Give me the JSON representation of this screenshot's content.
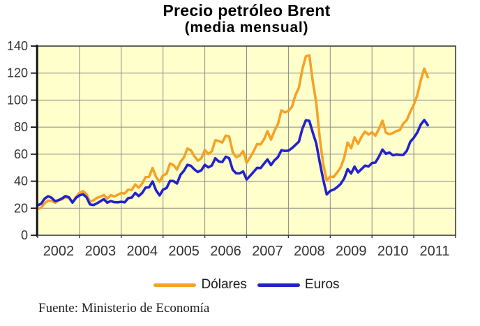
{
  "header": {
    "title": "Precio petróleo Brent",
    "subtitle": "(media mensual)"
  },
  "legend": {
    "items": [
      {
        "label": "Dólares",
        "color": "#F6A226"
      },
      {
        "label": "Euros",
        "color": "#2222CC"
      }
    ]
  },
  "footer": {
    "source": "Fuente: Ministerio de Economía"
  },
  "chart_data": {
    "type": "line",
    "title": "Precio petróleo Brent",
    "subtitle": "(media mensual)",
    "x_frequency": "monthly",
    "x_start": "2002-01",
    "x_end": "2011-05",
    "xlim": [
      2002,
      2012
    ],
    "ylim": [
      0,
      140
    ],
    "y_ticks": [
      0,
      20,
      40,
      60,
      80,
      100,
      120,
      140
    ],
    "x_tick_labels": [
      "2002",
      "2003",
      "2004",
      "2005",
      "2006",
      "2007",
      "2008",
      "2009",
      "2010",
      "2011"
    ],
    "grid": true,
    "legend_position": "bottom",
    "plot_background": "#FFFFCB",
    "grid_color": "#8A8A8A",
    "series": [
      {
        "name": "Dólares",
        "color": "#F6A226",
        "values": [
          19.5,
          20.3,
          23.7,
          25.7,
          25.4,
          24.1,
          25.8,
          26.6,
          28.4,
          27.5,
          24.3,
          28.3,
          31.3,
          32.7,
          30.5,
          24.9,
          25.8,
          27.6,
          28.5,
          29.8,
          27.1,
          29.6,
          28.7,
          29.9,
          31.3,
          30.9,
          33.8,
          33.4,
          37.6,
          35.2,
          38.3,
          43.0,
          43.3,
          49.8,
          43.1,
          39.6,
          44.3,
          45.4,
          53.1,
          51.9,
          48.6,
          54.4,
          57.5,
          64.1,
          62.9,
          58.5,
          55.2,
          56.9,
          63.1,
          60.1,
          62.1,
          70.3,
          69.8,
          68.6,
          73.7,
          73.1,
          61.7,
          57.8,
          58.9,
          62.3,
          53.7,
          57.6,
          62.1,
          67.5,
          67.2,
          71.1,
          77.0,
          70.7,
          77.2,
          82.3,
          92.4,
          90.9,
          92.0,
          95.0,
          103.7,
          109.1,
          122.8,
          132.4,
          133.2,
          113.9,
          98.1,
          71.9,
          52.5,
          40.4,
          43.4,
          43.2,
          46.5,
          50.2,
          57.3,
          68.6,
          64.4,
          72.5,
          67.7,
          72.8,
          76.7,
          74.5,
          76.2,
          73.7,
          78.8,
          84.8,
          75.9,
          74.8,
          75.6,
          77.1,
          77.8,
          82.7,
          85.3,
          91.4,
          96.5,
          103.7,
          114.6,
          123.3,
          117.0
        ]
      },
      {
        "name": "Euros",
        "color": "#2222CC",
        "values": [
          22.1,
          23.3,
          27.1,
          28.9,
          27.7,
          25.2,
          26.0,
          27.2,
          29.0,
          28.0,
          24.2,
          27.7,
          29.5,
          30.3,
          28.2,
          22.9,
          22.3,
          23.6,
          25.1,
          26.7,
          24.1,
          25.3,
          24.5,
          24.4,
          24.8,
          24.4,
          27.5,
          27.9,
          31.3,
          29.0,
          31.3,
          35.3,
          35.5,
          39.8,
          33.2,
          29.5,
          33.8,
          34.9,
          40.2,
          40.1,
          38.3,
          44.8,
          47.7,
          52.1,
          51.4,
          48.7,
          46.8,
          48.1,
          52.1,
          50.2,
          51.6,
          57.0,
          54.6,
          54.2,
          58.1,
          57.0,
          48.5,
          45.9,
          45.8,
          47.2,
          41.3,
          44.0,
          46.9,
          49.9,
          49.7,
          53.0,
          56.1,
          51.9,
          55.5,
          57.8,
          63.0,
          62.4,
          62.6,
          64.4,
          66.8,
          69.3,
          78.8,
          85.1,
          84.6,
          76.0,
          68.0,
          54.0,
          41.2,
          30.2,
          32.8,
          33.8,
          35.6,
          38.0,
          42.0,
          48.9,
          45.7,
          50.8,
          46.5,
          49.0,
          51.5,
          50.9,
          53.4,
          53.9,
          58.2,
          63.4,
          60.3,
          61.2,
          59.2,
          59.8,
          59.5,
          59.5,
          62.5,
          69.2,
          72.1,
          76.0,
          81.9,
          85.3,
          81.5
        ]
      }
    ]
  }
}
